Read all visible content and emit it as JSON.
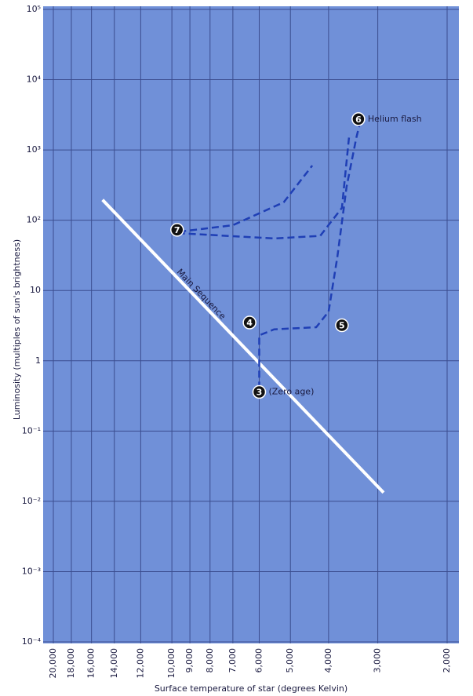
{
  "chart_data": {
    "type": "hr-diagram",
    "x_label": "Surface temperature of star (degrees Kelvin)",
    "y_label": "Luminosity (multiples of sun's brightness)",
    "xlog": true,
    "ylog": true,
    "grid": true,
    "xlim": [
      20000,
      2000
    ],
    "xticks": [
      {
        "value": 20000,
        "label": "20,000"
      },
      {
        "value": 18000,
        "label": "18,000"
      },
      {
        "value": 16000,
        "label": "16,000"
      },
      {
        "value": 14000,
        "label": "14,000"
      },
      {
        "value": 12000,
        "label": "12,000"
      },
      {
        "value": 10000,
        "label": "10,000"
      },
      {
        "value": 9000,
        "label": "9,000"
      },
      {
        "value": 8000,
        "label": "8,000"
      },
      {
        "value": 7000,
        "label": "7,000"
      },
      {
        "value": 6000,
        "label": "6,000"
      },
      {
        "value": 5000,
        "label": "5,000"
      },
      {
        "value": 4000,
        "label": "4,000"
      },
      {
        "value": 3000,
        "label": "3,000"
      },
      {
        "value": 2000,
        "label": "2,000"
      }
    ],
    "ylim": [
      0.0001,
      100000
    ],
    "yticks": [
      {
        "value": 0.0001,
        "label": "10⁻⁴"
      },
      {
        "value": 0.001,
        "label": "10⁻³"
      },
      {
        "value": 0.01,
        "label": "10⁻²"
      },
      {
        "value": 0.1,
        "label": "10⁻¹"
      },
      1,
      10,
      {
        "value": 100,
        "label": "10²"
      },
      {
        "value": 1000,
        "label": "10³"
      },
      {
        "value": 10000,
        "label": "10⁴"
      },
      {
        "value": 100000,
        "label": "10⁵"
      }
    ],
    "main_sequence": {
      "name": "Main Sequence",
      "color": "#ffffff",
      "x": [
        15000,
        2900
      ],
      "values": [
        195,
        0.0133
      ]
    },
    "series": [
      {
        "color": "#1f3fb5",
        "x": [
          6000,
          6000,
          5500,
          4300,
          4000,
          3800,
          3600,
          3400,
          3300
        ],
        "values": [
          0.4,
          2.3,
          2.8,
          3,
          5,
          30,
          300,
          1500,
          3000
        ]
      },
      {
        "color": "#1f3fb5",
        "x": [
          3550,
          3700,
          4200,
          5500,
          9400,
          9300,
          7000,
          5200,
          4400
        ],
        "values": [
          1500,
          150,
          60,
          55,
          65,
          70,
          85,
          180,
          600
        ]
      }
    ],
    "points": [
      {
        "label": "3",
        "x": 6000,
        "y": 0.36,
        "note": "(Zero age)"
      },
      {
        "label": "4",
        "x": 6350,
        "y": 3.5
      },
      {
        "label": "5",
        "x": 3700,
        "y": 3.2
      },
      {
        "label": "6",
        "x": 3360,
        "y": 2750,
        "note": "Helium flash"
      },
      {
        "label": "7",
        "x": 9700,
        "y": 73
      }
    ]
  }
}
